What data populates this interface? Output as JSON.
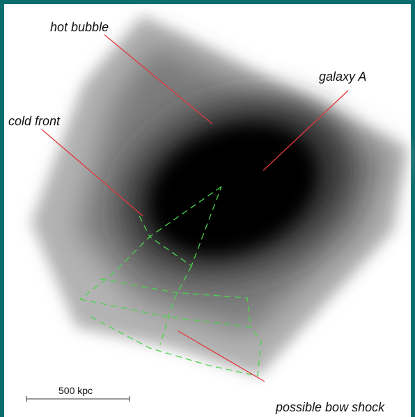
{
  "labels": {
    "hot_bubble": "hot bubble",
    "galaxy_a": "galaxy A",
    "cold_front": "cold front",
    "bow_shock": "possible bow shock"
  },
  "scale_bar": {
    "label": "500 kpc"
  }
}
